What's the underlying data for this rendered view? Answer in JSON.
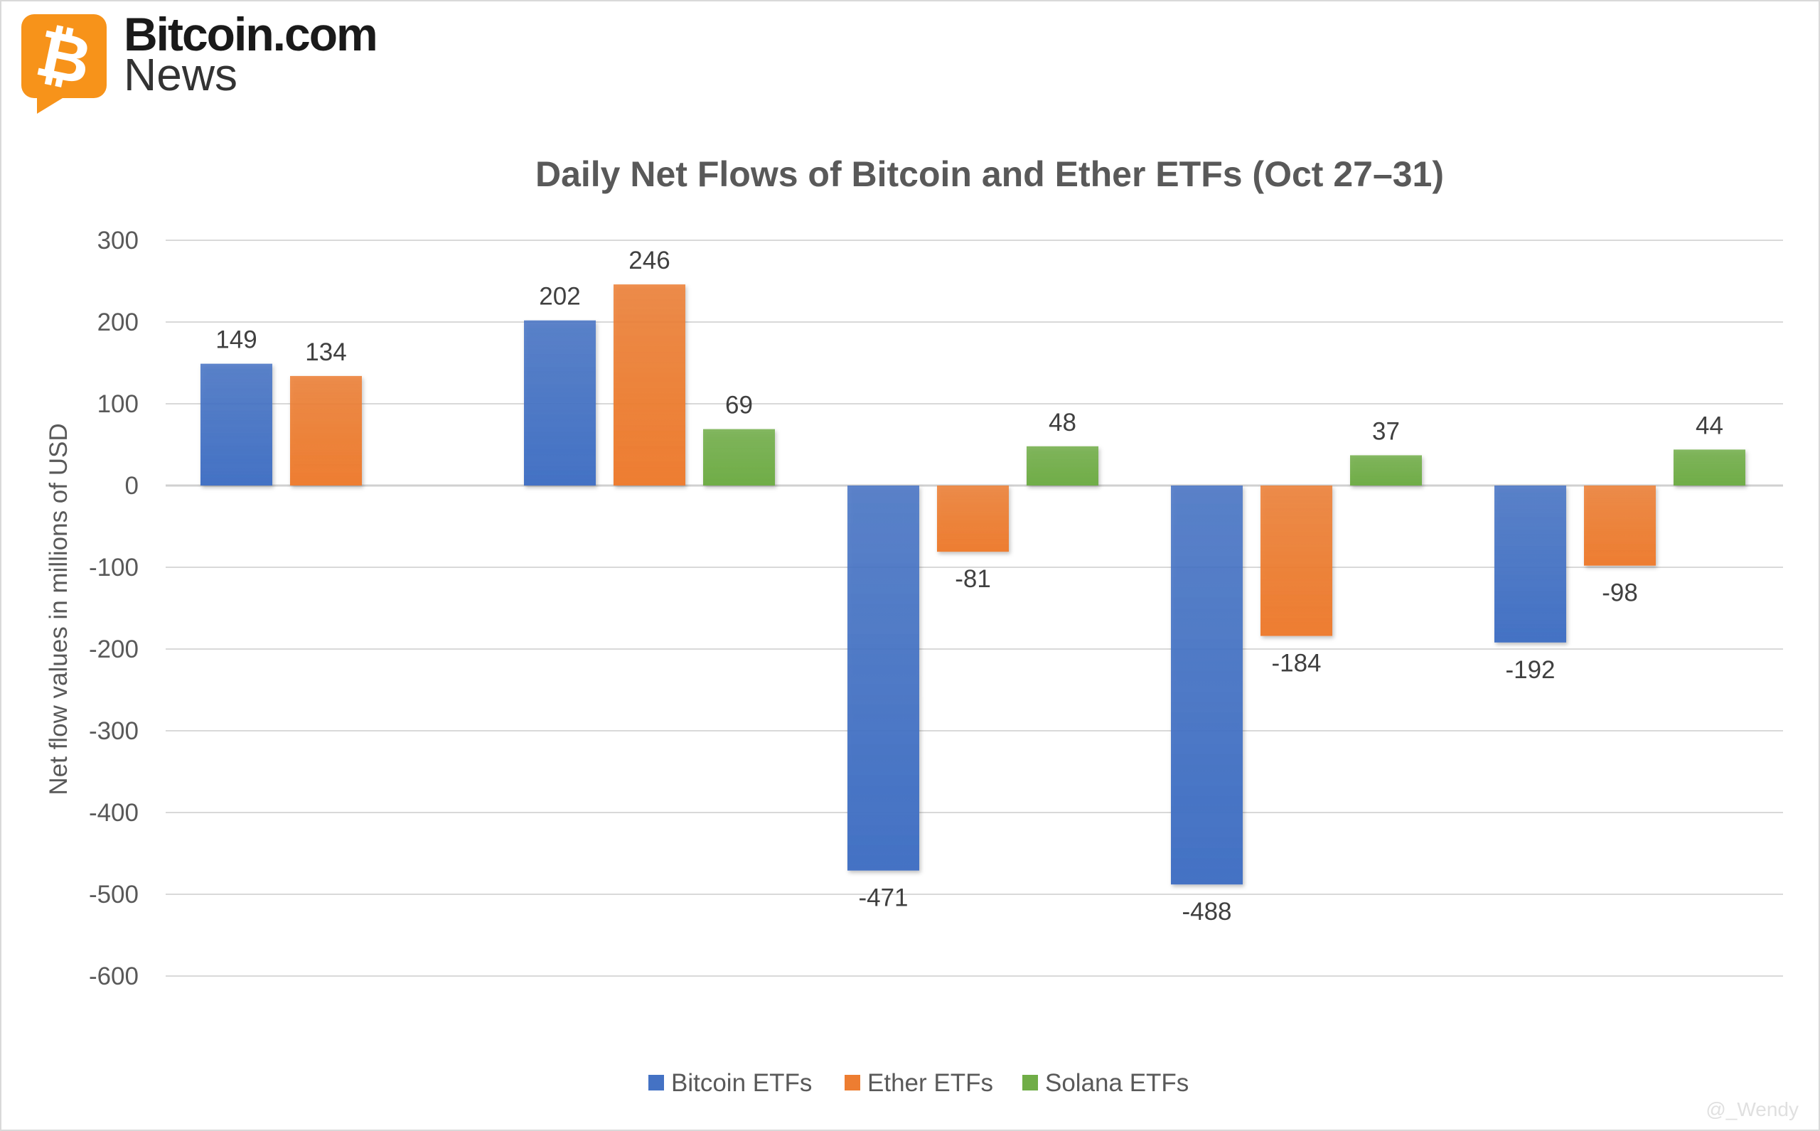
{
  "brand": {
    "name": "Bitcoin.com",
    "sub": "News",
    "color": "#F7931A"
  },
  "watermark": "@_Wendy",
  "chart_data": {
    "type": "bar",
    "title": "Daily Net Flows of Bitcoin and Ether ETFs (Oct 27–31)",
    "xlabel": "",
    "ylabel": "Net flow values in millions of USD",
    "ylim": [
      -600,
      300
    ],
    "yticks": [
      300,
      200,
      100,
      0,
      -100,
      -200,
      -300,
      -400,
      -500,
      -600
    ],
    "grid": true,
    "legend": "bottom",
    "categories": [
      "",
      "",
      "",
      "",
      ""
    ],
    "series": [
      {
        "name": "Bitcoin ETFs",
        "color": "#4472C4",
        "values": [
          149,
          202,
          -471,
          -488,
          -192
        ]
      },
      {
        "name": "Ether ETFs",
        "color": "#ED7D31",
        "values": [
          134,
          246,
          -81,
          -184,
          -98
        ]
      },
      {
        "name": "Solana ETFs",
        "color": "#70AD47",
        "values": [
          null,
          69,
          48,
          37,
          44
        ]
      }
    ]
  }
}
